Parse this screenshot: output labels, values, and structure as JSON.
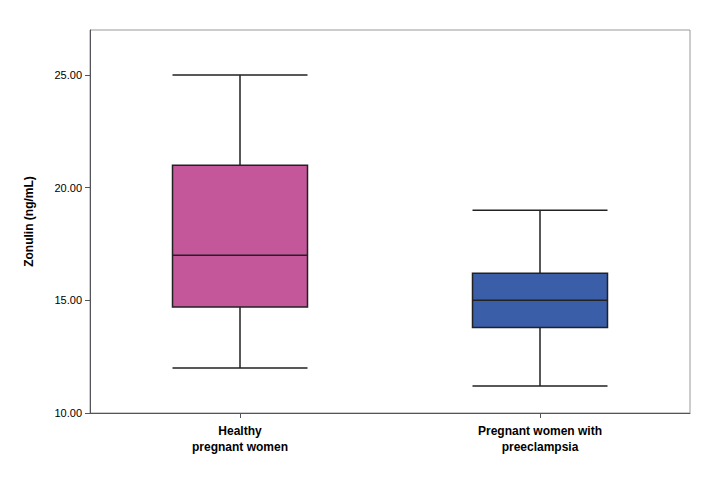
{
  "chart_data": {
    "type": "boxplot",
    "categories": [
      "Healthy\npregnant women",
      "Pregnant women with\npreeclampsia"
    ],
    "values": [
      {
        "whisker_low": 12.0,
        "q1": 14.7,
        "median": 17.0,
        "q3": 21.0,
        "whisker_high": 25.0
      },
      {
        "whisker_low": 11.2,
        "q1": 13.8,
        "median": 15.0,
        "q3": 16.2,
        "whisker_high": 19.0
      }
    ],
    "colors": [
      "#C4579A",
      "#3A5EA8"
    ],
    "ylabel": "Zonulin (ng/mL)",
    "ylim": [
      10.0,
      27.0
    ],
    "yticks": [
      {
        "value": 10.0,
        "label": "10.00"
      },
      {
        "value": 15.0,
        "label": "15.00"
      },
      {
        "value": 20.0,
        "label": "20.00"
      },
      {
        "value": 25.0,
        "label": "25.00"
      }
    ],
    "grid": false
  }
}
